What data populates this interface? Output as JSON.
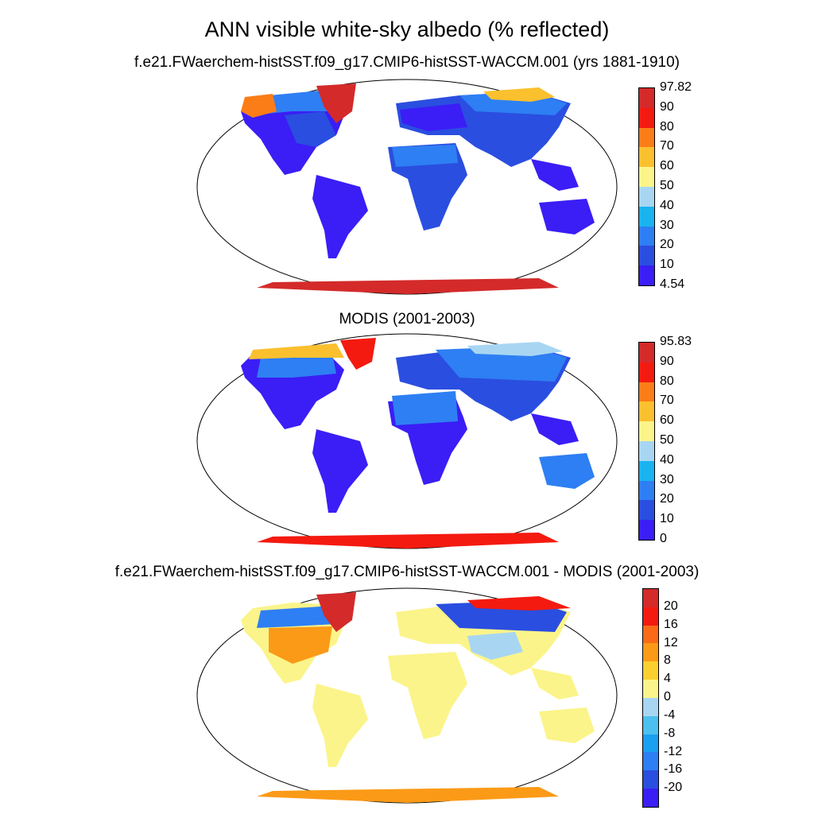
{
  "figure": {
    "title": "ANN visible white-sky albedo (% reflected)"
  },
  "panels": [
    {
      "id": "model",
      "title": "f.e21.FWaerchem-histSST.f09_g17.CMIP6-histSST-WACCM.001 (yrs 1881-1910)",
      "colorbar": {
        "colors": [
          "#3a1ef5",
          "#2a4ee0",
          "#2e7ff3",
          "#19b4f0",
          "#a8d6f2",
          "#fbf48a",
          "#fbc02e",
          "#fb7d17",
          "#f41a10",
          "#d42a2a"
        ],
        "labels": [
          "4.54",
          "10",
          "20",
          "30",
          "40",
          "50",
          "60",
          "70",
          "80",
          "90",
          "97.82"
        ]
      }
    },
    {
      "id": "obs",
      "title": "MODIS (2001-2003)",
      "colorbar": {
        "colors": [
          "#3a1ef5",
          "#2a4ee0",
          "#2e7ff3",
          "#19b4f0",
          "#a8d6f2",
          "#fbf48a",
          "#fbc02e",
          "#fb7d17",
          "#f41a10",
          "#d42a2a"
        ],
        "labels": [
          "0",
          "10",
          "20",
          "30",
          "40",
          "50",
          "60",
          "70",
          "80",
          "90",
          "95.83"
        ]
      }
    },
    {
      "id": "diff",
      "title": "f.e21.FWaerchem-histSST.f09_g17.CMIP6-histSST-WACCM.001 - MODIS (2001-2003)",
      "colorbar": {
        "colors": [
          "#3a1ef5",
          "#2a4ee0",
          "#2e7ff3",
          "#19a0f0",
          "#4cc0ee",
          "#a8d6f2",
          "#fbf48a",
          "#fbd02e",
          "#fb9a17",
          "#fb6a17",
          "#f41a10",
          "#d42a2a"
        ],
        "labels": [
          "-20",
          "-16",
          "-12",
          "-8",
          "-4",
          "0",
          "4",
          "8",
          "12",
          "16",
          "20"
        ]
      }
    }
  ]
}
